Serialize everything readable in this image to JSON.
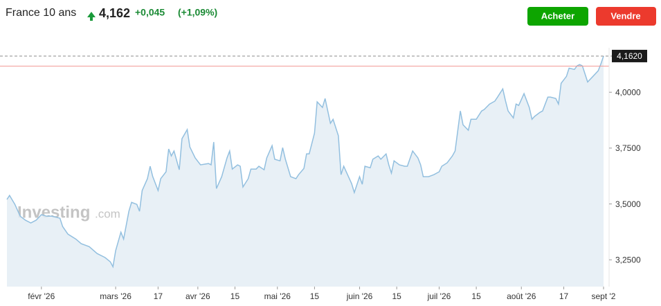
{
  "header": {
    "title": "France 10 ans",
    "price": "4,162",
    "change": "+0,045",
    "change_percent": "(+1,09%)"
  },
  "buttons": {
    "buy": "Acheter",
    "sell": "Vendre"
  },
  "chart_data": {
    "type": "area",
    "watermark": [
      "Investing",
      ".com"
    ],
    "color": "#92bfdf",
    "fill": "#e4edf4",
    "x": [
      "2026-01-19",
      "2026-01-20",
      "2026-01-22",
      "2026-01-24",
      "2026-01-26",
      "2026-01-28",
      "2026-01-30",
      "2026-02-01",
      "2026-02-03",
      "2026-02-05",
      "2026-02-08",
      "2026-02-09",
      "2026-02-11",
      "2026-02-14",
      "2026-02-16",
      "2026-02-19",
      "2026-02-22",
      "2026-02-25",
      "2026-02-27",
      "2026-02-28",
      "2026-03-01",
      "2026-03-03",
      "2026-03-04",
      "2026-03-06",
      "2026-03-07",
      "2026-03-09",
      "2026-03-10",
      "2026-03-11",
      "2026-03-13",
      "2026-03-14",
      "2026-03-15",
      "2026-03-17",
      "2026-03-18",
      "2026-03-20",
      "2026-03-21",
      "2026-03-22",
      "2026-03-23",
      "2026-03-25",
      "2026-03-26",
      "2026-03-28",
      "2026-03-29",
      "2026-03-31",
      "2026-04-02",
      "2026-04-05",
      "2026-04-06",
      "2026-04-07",
      "2026-04-08",
      "2026-04-10",
      "2026-04-12",
      "2026-04-13",
      "2026-04-14",
      "2026-04-16",
      "2026-04-17",
      "2026-04-18",
      "2026-04-20",
      "2026-04-21",
      "2026-04-23",
      "2026-04-24",
      "2026-04-26",
      "2026-04-27",
      "2026-04-29",
      "2026-04-30",
      "2026-05-02",
      "2026-05-03",
      "2026-05-04",
      "2026-05-06",
      "2026-05-08",
      "2026-05-09",
      "2026-05-11",
      "2026-05-12",
      "2026-05-13",
      "2026-05-15",
      "2026-05-16",
      "2026-05-18",
      "2026-05-19",
      "2026-05-21",
      "2026-05-22",
      "2026-05-24",
      "2026-05-25",
      "2026-05-26",
      "2026-05-29",
      "2026-05-30",
      "2026-06-01",
      "2026-06-02",
      "2026-06-03",
      "2026-06-05",
      "2026-06-06",
      "2026-06-08",
      "2026-06-09",
      "2026-06-11",
      "2026-06-12",
      "2026-06-13",
      "2026-06-14",
      "2026-06-16",
      "2026-06-18",
      "2026-06-19",
      "2026-06-21",
      "2026-06-23",
      "2026-06-24",
      "2026-06-25",
      "2026-06-27",
      "2026-06-29",
      "2026-07-01",
      "2026-07-02",
      "2026-07-04",
      "2026-07-06",
      "2026-07-07",
      "2026-07-09",
      "2026-07-10",
      "2026-07-12",
      "2026-07-13",
      "2026-07-15",
      "2026-07-17",
      "2026-07-18",
      "2026-07-20",
      "2026-07-22",
      "2026-07-23",
      "2026-07-25",
      "2026-07-26",
      "2026-07-27",
      "2026-07-29",
      "2026-07-30",
      "2026-07-31",
      "2026-08-02",
      "2026-08-04",
      "2026-08-05",
      "2026-08-06",
      "2026-08-08",
      "2026-08-09",
      "2026-08-11",
      "2026-08-12",
      "2026-08-14",
      "2026-08-15",
      "2026-08-16",
      "2026-08-18",
      "2026-08-19",
      "2026-08-21",
      "2026-08-22",
      "2026-08-23",
      "2026-08-24",
      "2026-08-26",
      "2026-08-28",
      "2026-08-30",
      "2026-08-31",
      "2026-09-01"
    ],
    "values": [
      3.52,
      3.538,
      3.498,
      3.445,
      3.427,
      3.415,
      3.427,
      3.452,
      3.445,
      3.445,
      3.436,
      3.399,
      3.365,
      3.343,
      3.322,
      3.309,
      3.278,
      3.26,
      3.241,
      3.219,
      3.291,
      3.374,
      3.343,
      3.467,
      3.507,
      3.498,
      3.467,
      3.56,
      3.613,
      3.669,
      3.622,
      3.56,
      3.613,
      3.644,
      3.746,
      3.715,
      3.737,
      3.653,
      3.792,
      3.833,
      3.755,
      3.706,
      3.675,
      3.681,
      3.675,
      3.777,
      3.569,
      3.622,
      3.706,
      3.737,
      3.656,
      3.675,
      3.669,
      3.576,
      3.613,
      3.656,
      3.656,
      3.669,
      3.653,
      3.706,
      3.761,
      3.7,
      3.693,
      3.752,
      3.7,
      3.622,
      3.613,
      3.631,
      3.659,
      3.724,
      3.724,
      3.817,
      3.957,
      3.932,
      3.972,
      3.861,
      3.879,
      3.805,
      3.631,
      3.669,
      3.591,
      3.551,
      3.622,
      3.588,
      3.669,
      3.662,
      3.7,
      3.715,
      3.7,
      3.724,
      3.675,
      3.638,
      3.693,
      3.675,
      3.669,
      3.669,
      3.737,
      3.706,
      3.675,
      3.622,
      3.622,
      3.631,
      3.644,
      3.669,
      3.684,
      3.715,
      3.737,
      3.916,
      3.854,
      3.83,
      3.879,
      3.879,
      3.916,
      3.923,
      3.947,
      3.96,
      3.978,
      4.015,
      3.963,
      3.916,
      3.885,
      3.947,
      3.941,
      3.994,
      3.932,
      3.879,
      3.892,
      3.91,
      3.916,
      3.978,
      3.978,
      3.972,
      3.947,
      4.04,
      4.071,
      4.108,
      4.102,
      4.118,
      4.124,
      4.118,
      4.046,
      4.071,
      4.096,
      4.127,
      4.162
    ],
    "xlim": [
      "2026-01-19",
      "2026-09-01"
    ],
    "xticks": [
      {
        "value": "2026-02-01",
        "label": "févr '26"
      },
      {
        "value": "2026-03-01",
        "label": "mars '26"
      },
      {
        "value": "2026-03-17",
        "label": "17"
      },
      {
        "value": "2026-04-01",
        "label": "avr '26"
      },
      {
        "value": "2026-04-15",
        "label": "15"
      },
      {
        "value": "2026-05-01",
        "label": "mai '26"
      },
      {
        "value": "2026-05-15",
        "label": "15"
      },
      {
        "value": "2026-06-01",
        "label": "juin '26"
      },
      {
        "value": "2026-06-15",
        "label": "15"
      },
      {
        "value": "2026-07-01",
        "label": "juil '26"
      },
      {
        "value": "2026-07-15",
        "label": "15"
      },
      {
        "value": "2026-08-01",
        "label": "août '26"
      },
      {
        "value": "2026-08-17",
        "label": "17"
      },
      {
        "value": "2026-09-01",
        "label": "sept '2"
      }
    ],
    "ylim": [
      3.13,
      4.23
    ],
    "yticks": [
      {
        "value": 3.25,
        "label": "3,2500"
      },
      {
        "value": 3.5,
        "label": "3,5000"
      },
      {
        "value": 3.75,
        "label": "3,7500"
      },
      {
        "value": 4,
        "label": "4,0000"
      }
    ],
    "last_price": {
      "value": 4.162,
      "label": "4,1620"
    },
    "previous_close": 4.117
  }
}
